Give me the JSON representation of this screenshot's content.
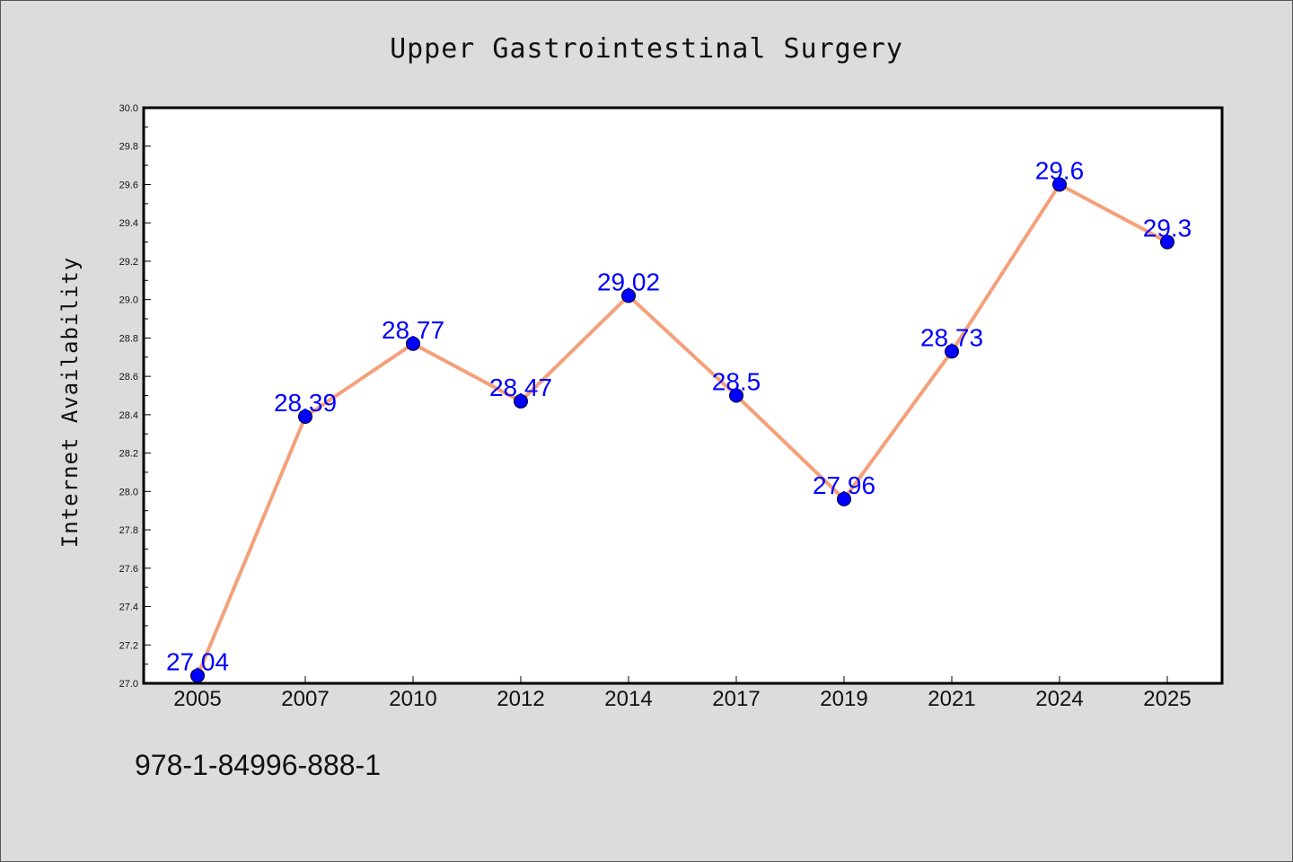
{
  "chart_data": {
    "type": "line",
    "title": "Upper Gastrointestinal Surgery",
    "xlabel": "",
    "ylabel": "Internet Availability",
    "categories": [
      "2005",
      "2007",
      "2010",
      "2012",
      "2014",
      "2017",
      "2019",
      "2021",
      "2024",
      "2025"
    ],
    "values": [
      27.04,
      28.39,
      28.77,
      28.47,
      29.02,
      28.5,
      27.96,
      28.73,
      29.6,
      29.3
    ],
    "data_labels": [
      "27.04",
      "28.39",
      "28.77",
      "28.47",
      "29.02",
      "28.5",
      "27.96",
      "28.73",
      "29.6",
      "29.3"
    ],
    "ylim": [
      27.0,
      30.0
    ],
    "yticks": [
      "27.0",
      "27.2",
      "27.4",
      "27.6",
      "27.8",
      "28.0",
      "28.2",
      "28.4",
      "28.6",
      "28.8",
      "29.0",
      "29.2",
      "29.4",
      "29.6",
      "29.8",
      "30.0"
    ],
    "grid": false,
    "legend": "none",
    "line_color": "#f4a07a",
    "marker_color": "#0000ff",
    "label_color": "#0000ff"
  },
  "footer": {
    "isbn": "978-1-84996-888-1"
  }
}
